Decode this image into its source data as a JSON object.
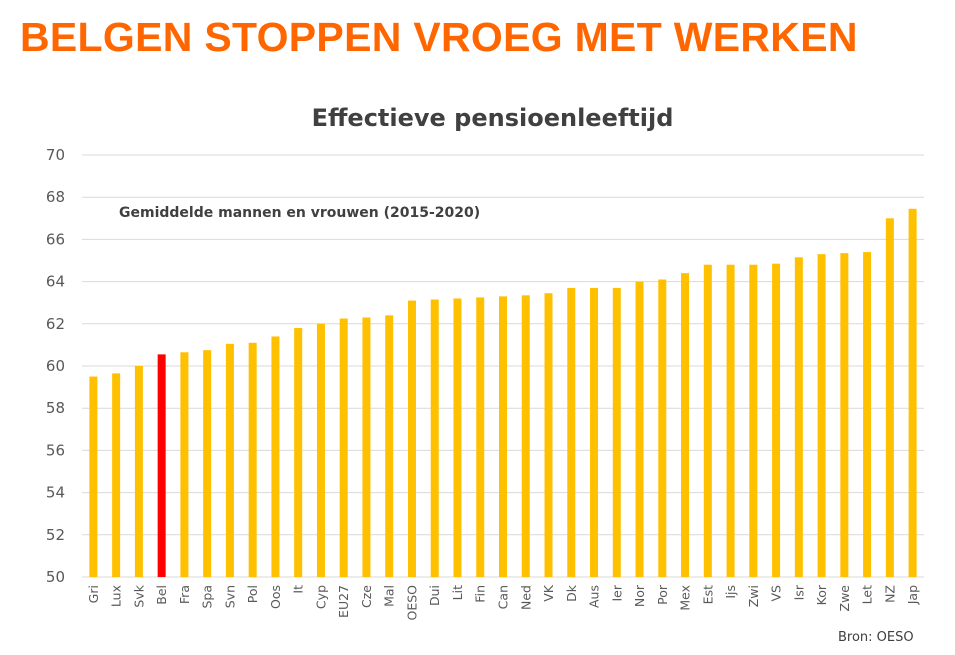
{
  "headline": "BELGEN STOPPEN VROEG MET WERKEN",
  "source": "Bron: OESO",
  "colors": {
    "headline": "#FF6600",
    "bar": "#FFC000",
    "highlight": "#FF0000",
    "grid": "#D9D9D9"
  },
  "chart_data": {
    "type": "bar",
    "title": "Effectieve pensioenleeftijd",
    "subtitle": "Gemiddelde mannen en vrouwen (2015-2020)",
    "xlabel": "",
    "ylabel": "",
    "ylim": [
      50,
      70
    ],
    "yticks": [
      50,
      52,
      54,
      56,
      58,
      60,
      62,
      64,
      66,
      68,
      70
    ],
    "grid": true,
    "highlight_category": "Bel",
    "categories": [
      "Gri",
      "Lux",
      "Svk",
      "Bel",
      "Fra",
      "Spa",
      "Svn",
      "Pol",
      "Oos",
      "It",
      "Cyp",
      "EU27",
      "Cze",
      "Mal",
      "OESO",
      "Dui",
      "Lit",
      "Fin",
      "Can",
      "Ned",
      "VK",
      "Dk",
      "Aus",
      "Ier",
      "Nor",
      "Por",
      "Mex",
      "Est",
      "Ijs",
      "Zwi",
      "VS",
      "Isr",
      "Kor",
      "Zwe",
      "Let",
      "NZ",
      "Jap"
    ],
    "values": [
      59.5,
      59.65,
      60.0,
      60.55,
      60.65,
      60.75,
      61.05,
      61.1,
      61.4,
      61.8,
      62.0,
      62.25,
      62.3,
      62.4,
      63.1,
      63.15,
      63.2,
      63.25,
      63.3,
      63.35,
      63.45,
      63.7,
      63.7,
      63.7,
      64.0,
      64.1,
      64.4,
      64.8,
      64.8,
      64.8,
      64.85,
      65.15,
      65.3,
      65.35,
      65.4,
      67.0,
      67.45
    ]
  }
}
